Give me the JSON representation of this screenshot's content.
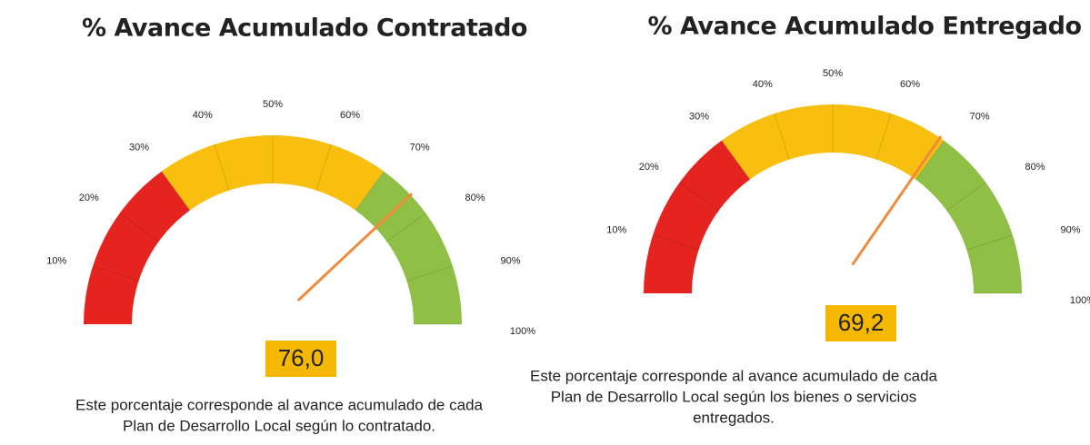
{
  "chart_data": [
    {
      "type": "gauge",
      "title": "% Avance Acumulado Contratado",
      "values": [
        76.0
      ],
      "value_labels": [
        "76,0"
      ],
      "ylim": [
        0,
        100
      ],
      "yticks": [
        {
          "value": 10,
          "label": "10%"
        },
        {
          "value": 20,
          "label": "20%"
        },
        {
          "value": 30,
          "label": "30%"
        },
        {
          "value": 40,
          "label": "40%"
        },
        {
          "value": 50,
          "label": "50%"
        },
        {
          "value": 60,
          "label": "60%"
        },
        {
          "value": 70,
          "label": "70%"
        },
        {
          "value": 80,
          "label": "80%"
        },
        {
          "value": 90,
          "label": "90%"
        },
        {
          "value": 100,
          "label": "100%"
        }
      ],
      "bands": [
        {
          "from": 0,
          "to": 30,
          "color": "#e52420"
        },
        {
          "from": 30,
          "to": 70,
          "color": "#f9bf0f"
        },
        {
          "from": 70,
          "to": 100,
          "color": "#8fc045"
        }
      ],
      "needle_color": "#f08a3c",
      "label_color": "#f5b800",
      "caption": [
        "Este porcentaje corresponde al avance acumulado de cada",
        "Plan de Desarrollo Local según lo contratado."
      ]
    },
    {
      "type": "gauge",
      "title": "% Avance Acumulado Entregado",
      "values": [
        69.2
      ],
      "value_labels": [
        "69,2"
      ],
      "ylim": [
        0,
        100
      ],
      "yticks": [
        {
          "value": 10,
          "label": "10%"
        },
        {
          "value": 20,
          "label": "20%"
        },
        {
          "value": 30,
          "label": "30%"
        },
        {
          "value": 40,
          "label": "40%"
        },
        {
          "value": 50,
          "label": "50%"
        },
        {
          "value": 60,
          "label": "60%"
        },
        {
          "value": 70,
          "label": "70%"
        },
        {
          "value": 80,
          "label": "80%"
        },
        {
          "value": 90,
          "label": "90%"
        },
        {
          "value": 100,
          "label": "100%"
        }
      ],
      "bands": [
        {
          "from": 0,
          "to": 30,
          "color": "#e52420"
        },
        {
          "from": 30,
          "to": 70,
          "color": "#f9bf0f"
        },
        {
          "from": 70,
          "to": 100,
          "color": "#8fc045"
        }
      ],
      "needle_color": "#f08a3c",
      "label_color": "#f5b800",
      "caption": [
        "Este porcentaje corresponde al avance acumulado de cada",
        "Plan de Desarrollo Local según los bienes o servicios",
        "entregados."
      ]
    }
  ]
}
